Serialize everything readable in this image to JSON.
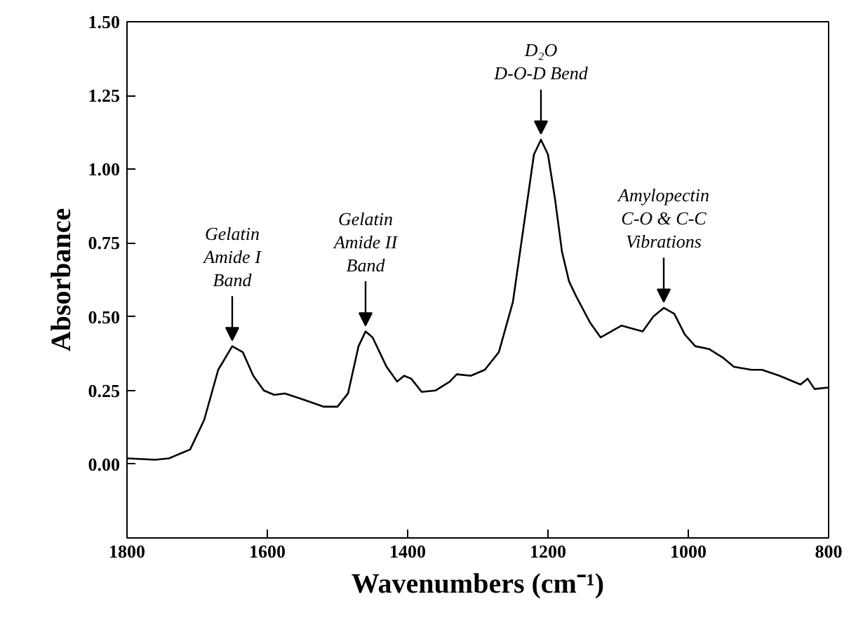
{
  "chart_data": {
    "type": "line",
    "xlabel": "Wavenumbers (cm⁻¹)",
    "ylabel": "Absorbance",
    "x": [
      1800,
      1760,
      1740,
      1710,
      1690,
      1670,
      1650,
      1635,
      1620,
      1605,
      1590,
      1575,
      1550,
      1520,
      1500,
      1485,
      1470,
      1460,
      1450,
      1430,
      1415,
      1405,
      1395,
      1380,
      1360,
      1340,
      1330,
      1310,
      1290,
      1270,
      1250,
      1235,
      1220,
      1210,
      1200,
      1190,
      1180,
      1170,
      1160,
      1140,
      1125,
      1110,
      1095,
      1080,
      1065,
      1050,
      1035,
      1020,
      1005,
      990,
      970,
      950,
      935,
      910,
      895,
      870,
      840,
      830,
      820,
      800
    ],
    "series": [
      {
        "color": "#000000",
        "values": [
          0.02,
          0.015,
          0.02,
          0.05,
          0.15,
          0.32,
          0.4,
          0.38,
          0.3,
          0.25,
          0.235,
          0.24,
          0.22,
          0.195,
          0.195,
          0.24,
          0.4,
          0.45,
          0.43,
          0.33,
          0.28,
          0.3,
          0.29,
          0.245,
          0.25,
          0.28,
          0.305,
          0.3,
          0.32,
          0.38,
          0.55,
          0.8,
          1.05,
          1.1,
          1.05,
          0.9,
          0.72,
          0.62,
          0.57,
          0.48,
          0.43,
          0.45,
          0.47,
          0.46,
          0.45,
          0.5,
          0.53,
          0.51,
          0.44,
          0.4,
          0.39,
          0.36,
          0.33,
          0.32,
          0.32,
          0.3,
          0.27,
          0.29,
          0.255,
          0.26
        ]
      }
    ],
    "xlim": [
      1800,
      800
    ],
    "ylim": [
      -0.25,
      1.5
    ],
    "xticks": [
      1800,
      1600,
      1400,
      1200,
      1000,
      800
    ],
    "yticks": [
      {
        "value": -0.25,
        "label": null
      },
      {
        "value": 0,
        "label": "0.00"
      },
      {
        "value": 0.25,
        "label": "0.25"
      },
      {
        "value": 0.5,
        "label": "0.50"
      },
      {
        "value": 0.75,
        "label": "0.75"
      },
      {
        "value": 1,
        "label": "1.00"
      },
      {
        "value": 1.25,
        "label": "1.25"
      },
      {
        "value": 1.5,
        "label": "1.50"
      }
    ],
    "annotations": [
      {
        "text": "Gelatin\nAmide I\nBand",
        "x": 1650,
        "y": 0.4
      },
      {
        "text": "Gelatin\nAmide II\nBand",
        "x": 1460,
        "y": 0.45
      },
      {
        "text": "D₂O\nD-O-D Bend",
        "x": 1210,
        "y": 1.1
      },
      {
        "text": "Amylopectin\nC-O & C-C\nVibrations",
        "x": 1035,
        "y": 0.53
      }
    ],
    "grid": false,
    "marker": "none",
    "line_style": "solid"
  }
}
